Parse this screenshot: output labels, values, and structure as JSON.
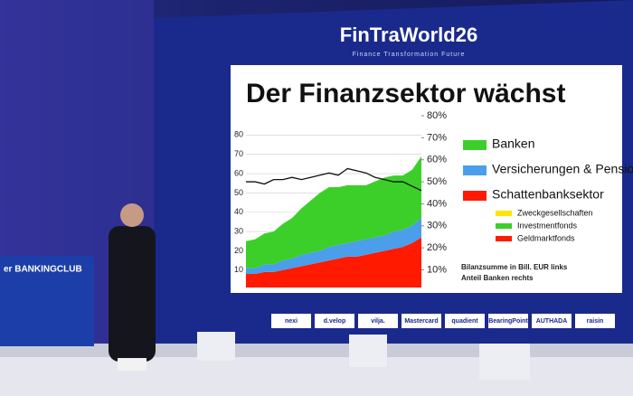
{
  "event": {
    "brand": "FinTraWorld26",
    "tagline": "Finance Transformation Future",
    "side_screen": "er BANKINGCLUB"
  },
  "sponsors": [
    "nexi",
    "d.velop",
    "vilja.",
    "Mastercard",
    "quadient",
    "BearingPoint",
    "AUTHADA",
    "raisin"
  ],
  "chart_data": {
    "type": "area",
    "stacked": true,
    "title": "Der Finanzsektor wächst",
    "categories": [
      null,
      null,
      null,
      null,
      null,
      null,
      null,
      null,
      null,
      null,
      null,
      null,
      null,
      null,
      null,
      null,
      null,
      null,
      null,
      null
    ],
    "series": [
      {
        "name": "Schattenbanksektor",
        "color": "#ff1a00",
        "values": [
          8,
          8,
          9,
          9,
          10,
          11,
          12,
          13,
          14,
          15,
          16,
          17,
          17,
          18,
          19,
          20,
          21,
          22,
          24,
          27
        ]
      },
      {
        "name": "Versicherungen & Pensionsfonds",
        "color": "#4a9eea",
        "values": [
          3,
          3,
          4,
          4,
          5,
          5,
          6,
          6,
          6,
          7,
          7,
          7,
          8,
          8,
          8,
          8,
          9,
          9,
          9,
          10
        ]
      },
      {
        "name": "Banken",
        "color": "#3ccf2a",
        "values": [
          14,
          15,
          16,
          17,
          19,
          21,
          24,
          27,
          30,
          31,
          30,
          30,
          29,
          28,
          29,
          30,
          29,
          28,
          29,
          32
        ]
      },
      {
        "name": "Anteil Banken",
        "color": "#111111",
        "axis": "y2",
        "line": true,
        "values": [
          50,
          50,
          49,
          51,
          51,
          52,
          51,
          52,
          53,
          54,
          53,
          56,
          55,
          54,
          52,
          51,
          50,
          50,
          48,
          46
        ]
      }
    ],
    "legend_order": [
      2,
      1,
      0
    ],
    "sub_legend": [
      {
        "name": "Zweckgesellschaften",
        "color": "#ffe600"
      },
      {
        "name": "Investmentfonds",
        "color": "#3ccf2a"
      },
      {
        "name": "Geldmarktfonds",
        "color": "#ff1a00"
      }
    ],
    "notes": [
      "Bilanzsumme in Bill. EUR links",
      "Anteil Banken rechts"
    ],
    "ylim": [
      1,
      90
    ],
    "yticks": [
      10,
      20,
      30,
      40,
      50,
      60,
      70,
      80
    ],
    "y2lim": [
      2,
      80
    ],
    "y2ticks": [
      {
        "value": 10,
        "label": "10%"
      },
      {
        "value": 20,
        "label": "20%"
      },
      {
        "value": 30,
        "label": "30%"
      },
      {
        "value": 40,
        "label": "40%"
      },
      {
        "value": 50,
        "label": "50%"
      },
      {
        "value": 60,
        "label": "60%"
      },
      {
        "value": 70,
        "label": "70%"
      },
      {
        "value": 80,
        "label": "80%"
      }
    ],
    "grid": true
  }
}
